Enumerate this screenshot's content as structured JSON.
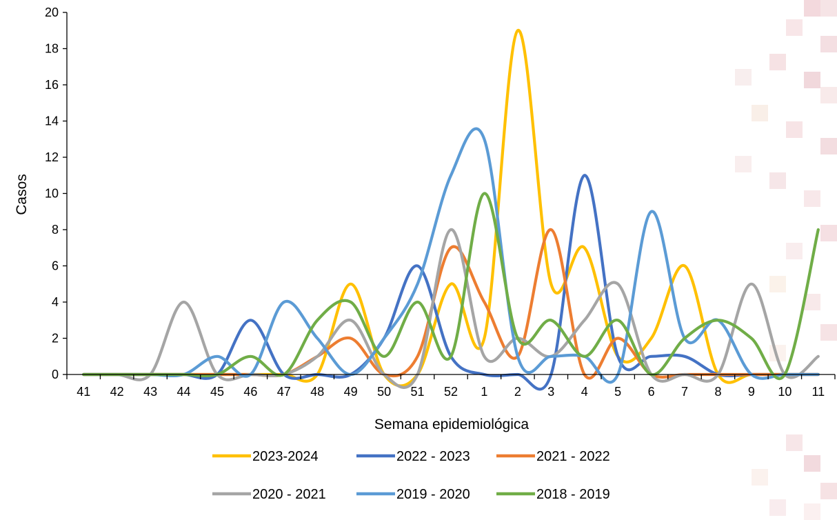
{
  "chart_data": {
    "type": "line",
    "smooth": true,
    "title": "",
    "xlabel": "Semana epidemiológica",
    "ylabel": "Casos",
    "ylim": [
      0,
      20
    ],
    "yticks": [
      0,
      2,
      4,
      6,
      8,
      10,
      12,
      14,
      16,
      18,
      20
    ],
    "grid": false,
    "legend_position": "bottom",
    "categories": [
      "41",
      "42",
      "43",
      "44",
      "45",
      "46",
      "47",
      "48",
      "49",
      "50",
      "51",
      "52",
      "1",
      "2",
      "3",
      "4",
      "5",
      "6",
      "7",
      "8",
      "9",
      "10",
      "11"
    ],
    "series": [
      {
        "name": "2023-2024",
        "color": "#FFC000",
        "values": [
          0,
          0,
          0,
          0,
          0,
          0,
          0,
          0,
          5,
          0,
          0,
          5,
          2,
          19,
          5,
          7,
          1,
          2,
          6,
          0,
          0,
          0,
          0
        ]
      },
      {
        "name": "2022 - 2023",
        "color": "#4472C4",
        "values": [
          0,
          0,
          0,
          0,
          0,
          3,
          0,
          0,
          0,
          2,
          6,
          1,
          0,
          0,
          0,
          11,
          1,
          1,
          1,
          0,
          0,
          0,
          0
        ]
      },
      {
        "name": "2021 - 2022",
        "color": "#ED7D31",
        "values": [
          0,
          0,
          0,
          0,
          0,
          0,
          0,
          1,
          2,
          0,
          1,
          7,
          4,
          1,
          8,
          0,
          2,
          0,
          0,
          0,
          0,
          0,
          0
        ]
      },
      {
        "name": "2020 - 2021",
        "color": "#A5A5A5",
        "values": [
          0,
          0,
          0,
          4,
          0,
          0,
          0,
          1,
          3,
          0,
          0,
          8,
          1,
          2,
          1,
          3,
          5,
          0,
          0,
          0,
          5,
          0,
          1
        ]
      },
      {
        "name": "2019 - 2020",
        "color": "#5B9BD5",
        "values": [
          0,
          0,
          0,
          0,
          1,
          0,
          4,
          2,
          0,
          2,
          5,
          11,
          13,
          1,
          1,
          1,
          0,
          9,
          2,
          3,
          0,
          0,
          0
        ]
      },
      {
        "name": "2018 - 2019",
        "color": "#70AD47",
        "values": [
          0,
          0,
          0,
          0,
          0,
          1,
          0,
          3,
          4,
          1,
          4,
          1,
          10,
          2,
          3,
          1,
          3,
          0,
          2,
          3,
          2,
          0,
          8
        ]
      }
    ]
  }
}
